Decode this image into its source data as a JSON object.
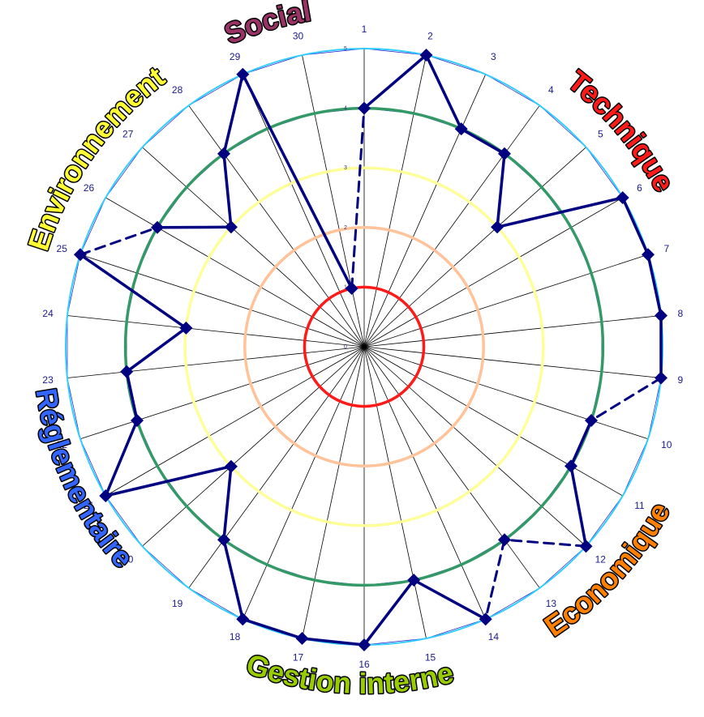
{
  "chart_data": {
    "type": "radar",
    "title": "",
    "axes": [
      "1",
      "2",
      "3",
      "4",
      "5",
      "6",
      "7",
      "8",
      "9",
      "10",
      "11",
      "12",
      "13",
      "14",
      "15",
      "16",
      "17",
      "18",
      "19",
      "20",
      "21",
      "22",
      "23",
      "24",
      "25",
      "26",
      "27",
      "28",
      "29",
      "30"
    ],
    "rlim": [
      0,
      5
    ],
    "ring_ticks": [
      "0",
      "1",
      "2",
      "3",
      "4",
      "5"
    ],
    "rings": [
      {
        "value": 1,
        "color": "#ff1a1a"
      },
      {
        "value": 2,
        "color": "#ffc299"
      },
      {
        "value": 3,
        "color": "#ffff99"
      },
      {
        "value": 4,
        "color": "#339966"
      },
      {
        "value": 5,
        "color": "#33ccff"
      }
    ],
    "series": [
      {
        "color": "#000080",
        "values": [
          4.0,
          5.0,
          4.0,
          4.0,
          3.0,
          5.0,
          5.0,
          5.0,
          5.0,
          4.0,
          4.0,
          5.0,
          4.0,
          5.0,
          4.0,
          5.0,
          5.0,
          5.0,
          4.0,
          3.0,
          5.0,
          4.0,
          4.0,
          3.0,
          5.0,
          4.0,
          3.0,
          4.0,
          5.0,
          1.0
        ],
        "solid_segments": [
          [
            1,
            2
          ],
          [
            2,
            3
          ],
          [
            3,
            4
          ],
          [
            4,
            5
          ],
          [
            5,
            6
          ],
          [
            6,
            7
          ],
          [
            7,
            8
          ],
          [
            8,
            9
          ],
          [
            10,
            11
          ],
          [
            11,
            12
          ],
          [
            12,
            30
          ],
          [
            14,
            15
          ],
          [
            15,
            16
          ],
          [
            16,
            17
          ],
          [
            17,
            18
          ],
          [
            18,
            19
          ],
          [
            19,
            20
          ],
          [
            20,
            21
          ],
          [
            21,
            22
          ],
          [
            22,
            23
          ],
          [
            23,
            24
          ],
          [
            24,
            25
          ],
          [
            26,
            27
          ],
          [
            27,
            28
          ],
          [
            28,
            29
          ],
          [
            29,
            30
          ]
        ]
      }
    ],
    "groups": [
      {
        "label": "Technique",
        "color": "#ff1a1a"
      },
      {
        "label": "Economique",
        "color": "#ff8000"
      },
      {
        "label": "Gestion interne",
        "color": "#99cc00"
      },
      {
        "label": "Réglementaire",
        "color": "#3366ff"
      },
      {
        "label": "Environnement",
        "color": "#ffff33"
      },
      {
        "label": "Social",
        "color": "#993366"
      }
    ],
    "grid": true,
    "legend": "none"
  }
}
